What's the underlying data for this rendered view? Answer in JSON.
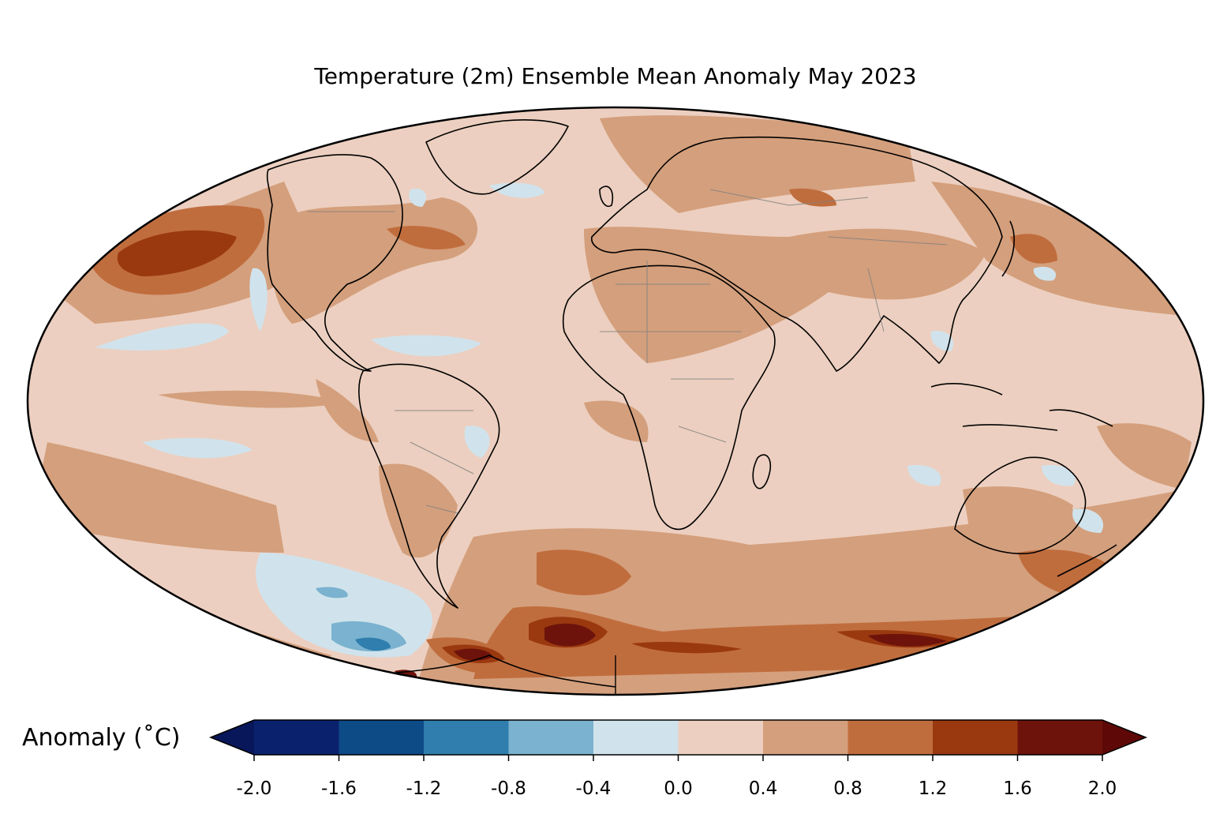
{
  "title": "Temperature (2m) Ensemble Mean Anomaly May 2023",
  "colorbar": {
    "label": "Anomaly (˚C)",
    "ticks": [
      "-2.0",
      "-1.6",
      "-1.2",
      "-0.8",
      "-0.4",
      "0.0",
      "0.4",
      "0.8",
      "1.2",
      "1.6",
      "2.0"
    ],
    "levels": [
      -2.0,
      -1.6,
      -1.2,
      -0.8,
      -0.4,
      0.0,
      0.4,
      0.8,
      1.2,
      1.6,
      2.0
    ],
    "under_color": "#08175a",
    "over_color": "#5e0808",
    "colors": [
      "#0a216e",
      "#0d4b87",
      "#2f7ead",
      "#7ab2cf",
      "#d0e3ec",
      "#eccfc0",
      "#d49f7c",
      "#c06d3e",
      "#9a3910",
      "#6d130b"
    ]
  },
  "map": {
    "projection": "Mollweide",
    "ocean_base_color": "#eccfc0"
  }
}
